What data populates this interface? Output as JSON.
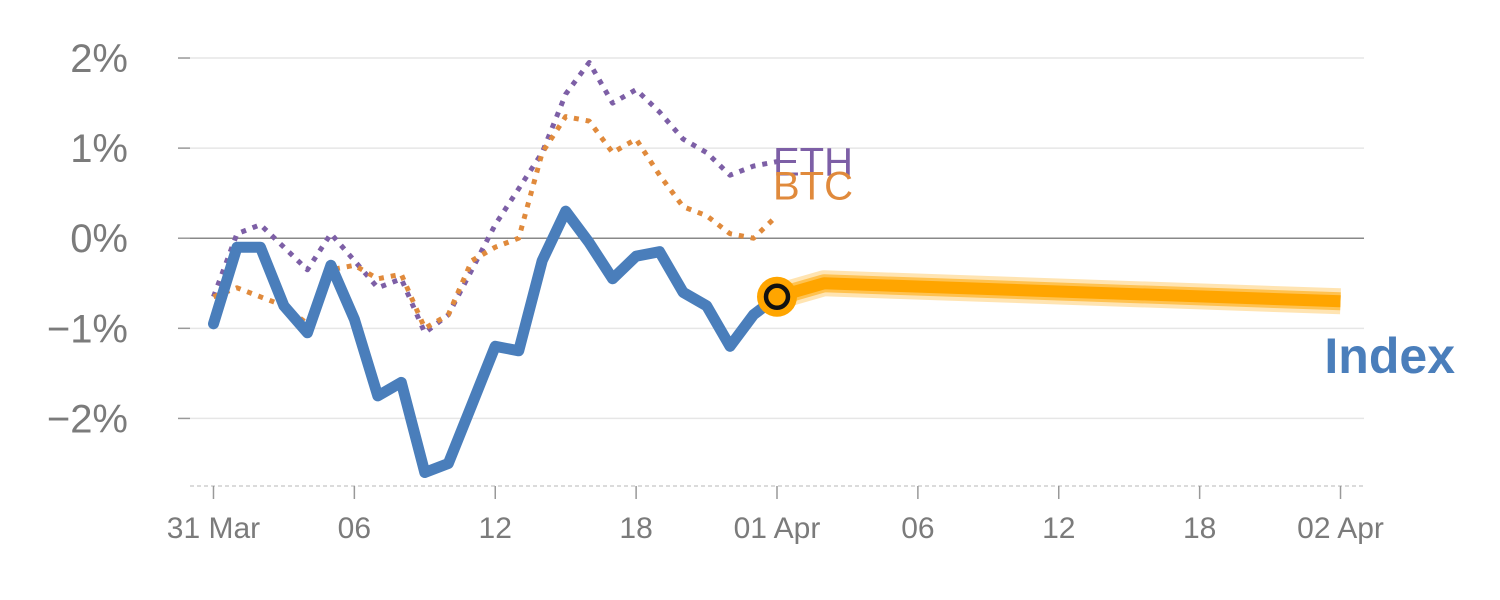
{
  "chart_data": {
    "type": "line",
    "y_ticks": [
      {
        "value": 2,
        "label": "2%"
      },
      {
        "value": 1,
        "label": "1%"
      },
      {
        "value": 0,
        "label": "0%"
      },
      {
        "value": -1,
        "label": "−1%"
      },
      {
        "value": -2,
        "label": "−2%"
      }
    ],
    "ylim": [
      -2.75,
      2.2
    ],
    "x_ticks": [
      {
        "t": 0,
        "label": "31 Mar"
      },
      {
        "t": 6,
        "label": "06"
      },
      {
        "t": 12,
        "label": "12"
      },
      {
        "t": 18,
        "label": "18"
      },
      {
        "t": 24,
        "label": "01 Apr"
      },
      {
        "t": 30,
        "label": "06"
      },
      {
        "t": 36,
        "label": "12"
      },
      {
        "t": 42,
        "label": "18"
      },
      {
        "t": 48,
        "label": "02 Apr"
      }
    ],
    "xlim": [
      -1,
      49
    ],
    "grid": true,
    "series": [
      {
        "name": "ETH",
        "color": "#7d5fa6",
        "style": "dotted",
        "x": [
          0,
          1,
          2,
          3,
          4,
          5,
          6,
          7,
          8,
          9,
          10,
          11,
          12,
          13,
          14,
          15,
          16,
          17,
          18,
          19,
          20,
          21,
          22,
          23,
          24
        ],
        "values": [
          -0.65,
          0.05,
          0.15,
          -0.1,
          -0.35,
          0.05,
          -0.25,
          -0.55,
          -0.45,
          -1.05,
          -0.85,
          -0.35,
          0.15,
          0.55,
          0.95,
          1.6,
          1.95,
          1.5,
          1.65,
          1.4,
          1.1,
          0.95,
          0.7,
          0.8,
          0.85
        ]
      },
      {
        "name": "BTC",
        "color": "#e08a3c",
        "style": "dotted",
        "x": [
          0,
          1,
          2,
          3,
          4,
          5,
          6,
          7,
          8,
          9,
          10,
          11,
          12,
          13,
          14,
          15,
          16,
          17,
          18,
          19,
          20,
          21,
          22,
          23,
          24
        ],
        "values": [
          -0.65,
          -0.55,
          -0.65,
          -0.75,
          -0.95,
          -0.35,
          -0.3,
          -0.45,
          -0.4,
          -1.0,
          -0.85,
          -0.25,
          -0.1,
          0.0,
          0.95,
          1.35,
          1.3,
          0.95,
          1.1,
          0.7,
          0.35,
          0.25,
          0.05,
          0.0,
          0.25
        ]
      },
      {
        "name": "Index",
        "color": "#4a7ebb",
        "style": "solid",
        "x": [
          0,
          1,
          2,
          3,
          4,
          5,
          6,
          7,
          8,
          9,
          10,
          11,
          12,
          13,
          14,
          15,
          16,
          17,
          18,
          19,
          20,
          21,
          22,
          23,
          24
        ],
        "values": [
          -0.95,
          -0.1,
          -0.1,
          -0.75,
          -1.05,
          -0.3,
          -0.9,
          -1.75,
          -1.6,
          -2.6,
          -2.5,
          -1.85,
          -1.2,
          -1.25,
          -0.25,
          0.3,
          -0.05,
          -0.45,
          -0.2,
          -0.15,
          -0.6,
          -0.75,
          -1.2,
          -0.85,
          -0.65
        ]
      },
      {
        "name": "Index",
        "role": "forecast",
        "color": "#ffa500",
        "style": "band",
        "x": [
          24,
          26,
          48
        ],
        "values": [
          -0.65,
          -0.5,
          -0.7
        ]
      }
    ],
    "marker": {
      "t": 24,
      "value": -0.65,
      "color": "#ffa500"
    },
    "labels": {
      "eth": "ETH",
      "btc": "BTC",
      "index": "Index"
    }
  }
}
